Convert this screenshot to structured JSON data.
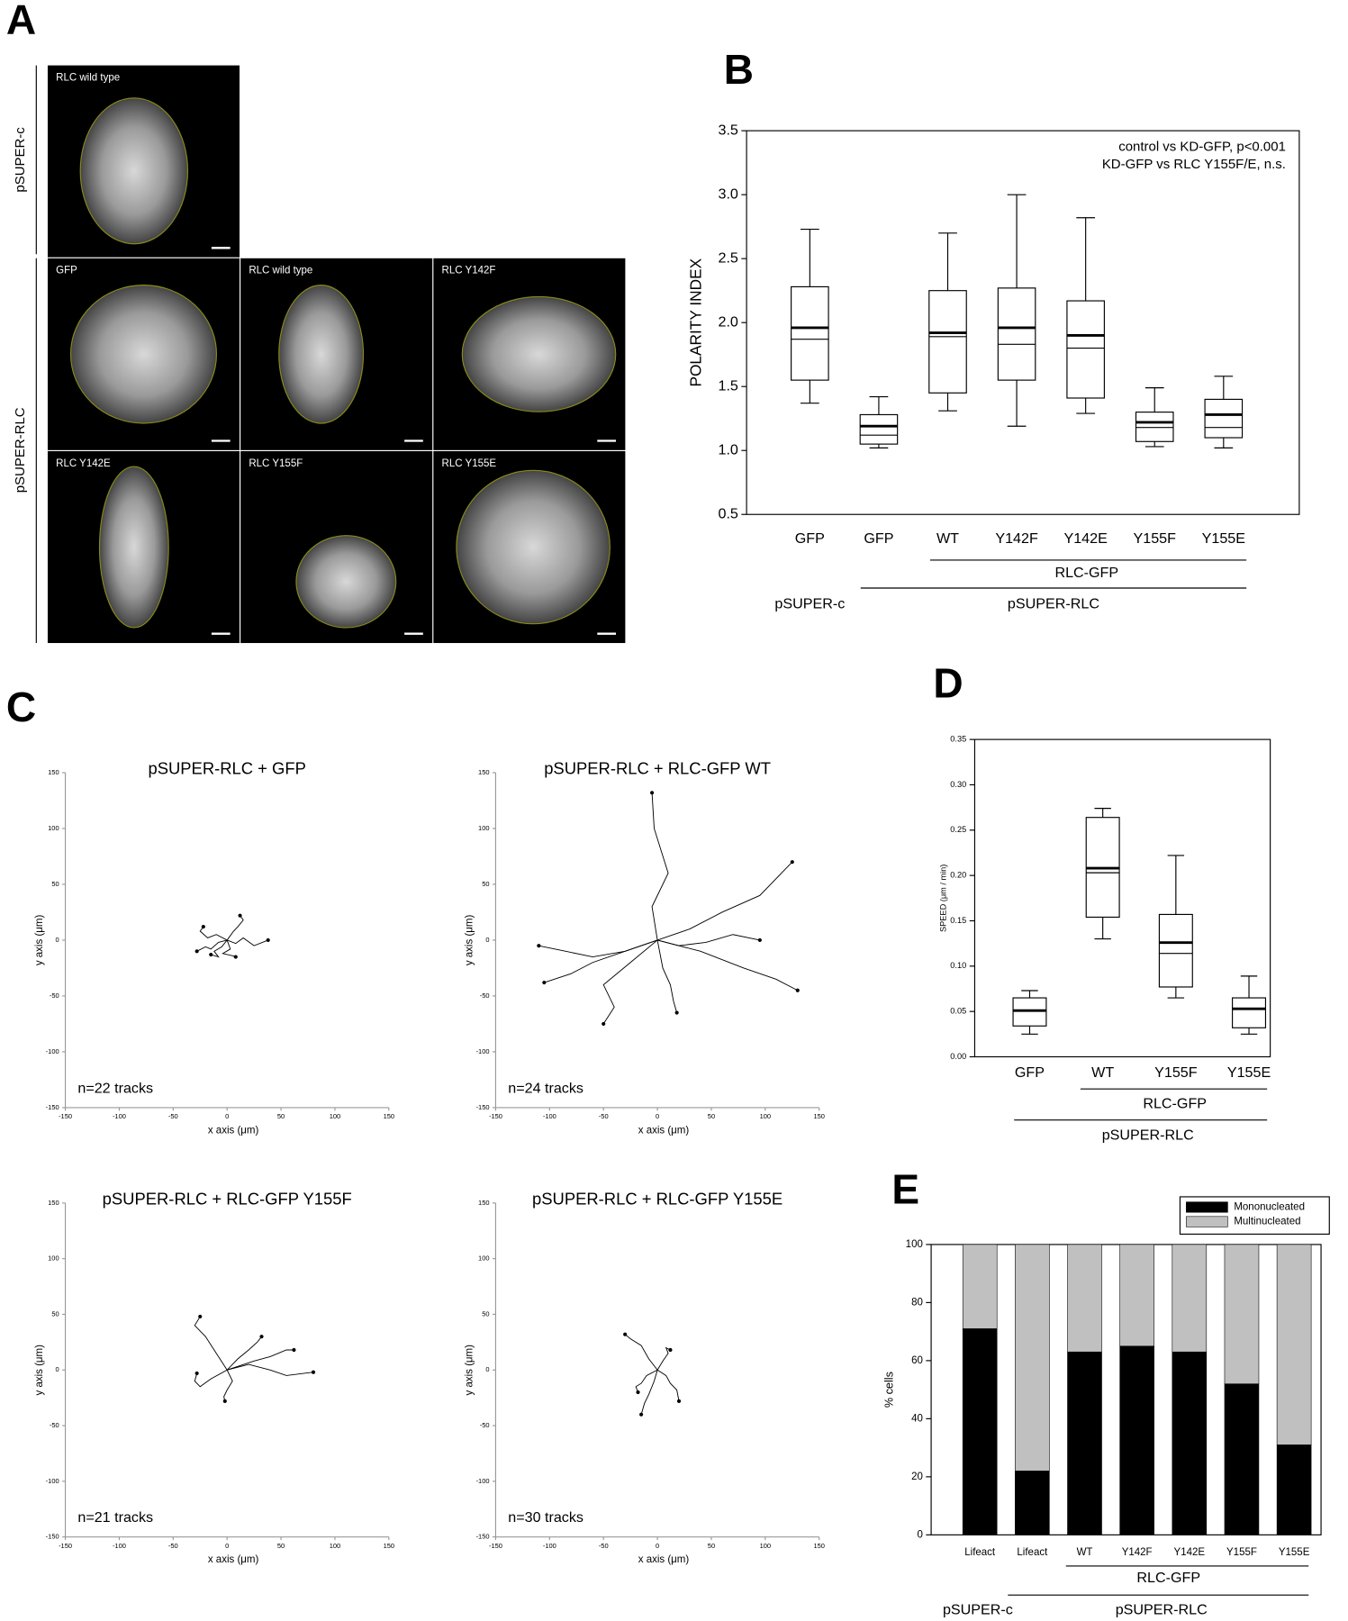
{
  "panel_labels": [
    "A",
    "B",
    "C",
    "D",
    "E"
  ],
  "figure_a": {
    "row_labels": [
      "pSUPER-c",
      "pSUPER-RLC"
    ],
    "image_labels": [
      "RLC wild type",
      "GFP",
      "RLC wild type",
      "RLC Y142F",
      "RLC Y142E",
      "RLC Y155F",
      "RLC Y155E"
    ]
  },
  "chart_data": [
    {
      "type": "box",
      "ylabel": "POLARITY INDEX",
      "annotations": [
        "control vs KD-GFP, p<0.001",
        "KD-GFP vs RLC Y155F/E, n.s."
      ],
      "categories": [
        "GFP",
        "GFP",
        "WT",
        "Y142F",
        "Y142E",
        "Y155F",
        "Y155E"
      ],
      "group_labels": [
        "RLC-GFP",
        "pSUPER-c",
        "pSUPER-RLC"
      ],
      "boxes": [
        {
          "whisker_low": 1.37,
          "q1": 1.55,
          "median": 1.96,
          "mean": 1.87,
          "q3": 2.28,
          "whisker_high": 2.73
        },
        {
          "whisker_low": 1.02,
          "q1": 1.05,
          "median": 1.19,
          "mean": 1.12,
          "q3": 1.28,
          "whisker_high": 1.42
        },
        {
          "whisker_low": 1.31,
          "q1": 1.45,
          "median": 1.92,
          "mean": 1.89,
          "q3": 2.25,
          "whisker_high": 2.7
        },
        {
          "whisker_low": 1.19,
          "q1": 1.55,
          "median": 1.96,
          "mean": 1.83,
          "q3": 2.27,
          "whisker_high": 3.0
        },
        {
          "whisker_low": 1.29,
          "q1": 1.41,
          "median": 1.9,
          "mean": 1.8,
          "q3": 2.17,
          "whisker_high": 2.82
        },
        {
          "whisker_low": 1.03,
          "q1": 1.07,
          "median": 1.22,
          "mean": 1.18,
          "q3": 1.3,
          "whisker_high": 1.49
        },
        {
          "whisker_low": 1.02,
          "q1": 1.1,
          "median": 1.28,
          "mean": 1.18,
          "q3": 1.4,
          "whisker_high": 1.58
        }
      ],
      "color": "#000000",
      "ylim": [
        0.5,
        3.5
      ],
      "yticks": [
        0.5,
        {
          "value": 1,
          "label": "1.0"
        },
        1.5,
        {
          "value": 2,
          "label": "2.0"
        },
        2.5,
        {
          "value": 3,
          "label": "3.0"
        },
        3.5
      ]
    },
    {
      "type": "line",
      "title": "pSUPER-RLC + GFP",
      "xlabel": "x axis (μm)",
      "ylabel": "y axis (μm)",
      "annotation": "n=22 tracks",
      "color": "#000000",
      "xlim": [
        -150,
        150
      ],
      "ylim": [
        -150,
        150
      ],
      "xticks": [
        -150,
        -100,
        -50,
        0,
        50,
        100,
        150
      ],
      "yticks": [
        -150,
        -100,
        -50,
        0,
        50,
        100,
        150
      ],
      "series": [
        {
          "x": [
            0,
            -10,
            -18,
            -25,
            -22
          ],
          "values": [
            0,
            5,
            2,
            8,
            12
          ]
        },
        {
          "x": [
            0,
            8,
            15,
            25,
            38
          ],
          "values": [
            0,
            -3,
            2,
            -5,
            0
          ]
        },
        {
          "x": [
            0,
            -5,
            -12,
            -8,
            -15
          ],
          "values": [
            0,
            -6,
            -10,
            -15,
            -13
          ]
        },
        {
          "x": [
            0,
            6,
            10,
            15,
            12
          ],
          "values": [
            0,
            8,
            12,
            18,
            22
          ]
        },
        {
          "x": [
            0,
            3,
            -4,
            5,
            8
          ],
          "values": [
            0,
            -8,
            -12,
            -14,
            -15
          ]
        },
        {
          "x": [
            0,
            -8,
            -15,
            -20,
            -28
          ],
          "values": [
            0,
            -2,
            -8,
            -6,
            -10
          ]
        }
      ]
    },
    {
      "type": "line",
      "title": "pSUPER-RLC + RLC-GFP WT",
      "xlabel": "x axis (μm)",
      "ylabel": "y axis (μm)",
      "annotation": "n=24 tracks",
      "color": "#000000",
      "xlim": [
        -150,
        150
      ],
      "ylim": [
        -150,
        150
      ],
      "xticks": [
        -150,
        -100,
        -50,
        0,
        50,
        100,
        150
      ],
      "yticks": [
        -150,
        -100,
        -50,
        0,
        50,
        100,
        150
      ],
      "series": [
        {
          "x": [
            0,
            -5,
            10,
            -3,
            -5
          ],
          "values": [
            0,
            30,
            60,
            100,
            132
          ]
        },
        {
          "x": [
            0,
            30,
            60,
            95,
            125
          ],
          "values": [
            0,
            10,
            25,
            40,
            70
          ]
        },
        {
          "x": [
            0,
            -30,
            -60,
            -85,
            -110
          ],
          "values": [
            0,
            -10,
            -15,
            -10,
            -5
          ]
        },
        {
          "x": [
            0,
            40,
            80,
            110,
            130
          ],
          "values": [
            0,
            -10,
            -25,
            -35,
            -45
          ]
        },
        {
          "x": [
            0,
            -25,
            -50,
            -40,
            -50
          ],
          "values": [
            0,
            -20,
            -40,
            -60,
            -75
          ]
        },
        {
          "x": [
            0,
            -30,
            -60,
            -80,
            -105
          ],
          "values": [
            0,
            -10,
            -20,
            -30,
            -38
          ]
        },
        {
          "x": [
            0,
            20,
            45,
            70,
            95
          ],
          "values": [
            0,
            -5,
            -2,
            5,
            0
          ]
        },
        {
          "x": [
            0,
            5,
            12,
            15,
            18
          ],
          "values": [
            0,
            -25,
            -40,
            -55,
            -65
          ]
        }
      ]
    },
    {
      "type": "line",
      "title": "pSUPER-RLC + RLC-GFP Y155F",
      "xlabel": "x axis (μm)",
      "ylabel": "y axis (μm)",
      "annotation": "n=21 tracks",
      "color": "#000000",
      "xlim": [
        -150,
        150
      ],
      "ylim": [
        -150,
        150
      ],
      "xticks": [
        -150,
        -100,
        -50,
        0,
        50,
        100,
        150
      ],
      "yticks": [
        -150,
        -100,
        -50,
        0,
        50,
        100,
        150
      ],
      "series": [
        {
          "x": [
            0,
            -10,
            -20,
            -30,
            -25
          ],
          "values": [
            0,
            15,
            30,
            40,
            48
          ]
        },
        {
          "x": [
            0,
            20,
            40,
            55,
            80
          ],
          "values": [
            0,
            5,
            0,
            -5,
            -2
          ]
        },
        {
          "x": [
            0,
            25,
            40,
            55,
            62
          ],
          "values": [
            0,
            8,
            12,
            18,
            18
          ]
        },
        {
          "x": [
            0,
            -15,
            -25,
            -30,
            -28
          ],
          "values": [
            0,
            -8,
            -15,
            -10,
            -3
          ]
        },
        {
          "x": [
            0,
            5,
            0,
            -3,
            -2
          ],
          "values": [
            0,
            -10,
            -18,
            -24,
            -28
          ]
        },
        {
          "x": [
            0,
            10,
            20,
            28,
            32
          ],
          "values": [
            0,
            10,
            18,
            25,
            30
          ]
        }
      ]
    },
    {
      "type": "line",
      "title": "pSUPER-RLC + RLC-GFP Y155E",
      "xlabel": "x axis (μm)",
      "ylabel": "y axis (μm)",
      "annotation": "n=30 tracks",
      "color": "#000000",
      "xlim": [
        -150,
        150
      ],
      "ylim": [
        -150,
        150
      ],
      "xticks": [
        -150,
        -100,
        -50,
        0,
        50,
        100,
        150
      ],
      "yticks": [
        -150,
        -100,
        -50,
        0,
        50,
        100,
        150
      ],
      "series": [
        {
          "x": [
            0,
            -8,
            -15,
            -25,
            -30
          ],
          "values": [
            0,
            10,
            22,
            28,
            32
          ]
        },
        {
          "x": [
            0,
            -3,
            -8,
            -12,
            -15
          ],
          "values": [
            0,
            -10,
            -22,
            -30,
            -40
          ]
        },
        {
          "x": [
            0,
            8,
            12,
            18,
            20
          ],
          "values": [
            0,
            -5,
            -12,
            -18,
            -28
          ]
        },
        {
          "x": [
            0,
            5,
            10,
            8,
            12
          ],
          "values": [
            0,
            8,
            15,
            20,
            18
          ]
        },
        {
          "x": [
            0,
            -10,
            -15,
            -20,
            -18
          ],
          "values": [
            0,
            -5,
            -12,
            -15,
            -20
          ]
        }
      ]
    },
    {
      "type": "box",
      "ylabel": "SPEED (μm / min)",
      "categories": [
        "GFP",
        "WT",
        "Y155F",
        "Y155E"
      ],
      "group_labels": [
        "RLC-GFP",
        "pSUPER-RLC"
      ],
      "boxes": [
        {
          "whisker_low": 0.025,
          "q1": 0.034,
          "median": 0.051,
          "mean": 0.051,
          "q3": 0.065,
          "whisker_high": 0.073
        },
        {
          "whisker_low": 0.13,
          "q1": 0.154,
          "median": 0.208,
          "mean": 0.203,
          "q3": 0.264,
          "whisker_high": 0.274
        },
        {
          "whisker_low": 0.065,
          "q1": 0.077,
          "median": 0.126,
          "mean": 0.114,
          "q3": 0.157,
          "whisker_high": 0.222
        },
        {
          "whisker_low": 0.025,
          "q1": 0.032,
          "median": 0.053,
          "mean": 0.053,
          "q3": 0.065,
          "whisker_high": 0.089
        }
      ],
      "color": "#000000",
      "ylim": [
        0,
        0.35
      ],
      "yticks": [
        {
          "value": 0,
          "label": "0.00"
        },
        {
          "value": 0.05,
          "label": "0.05"
        },
        {
          "value": 0.1,
          "label": "0.10"
        },
        {
          "value": 0.15,
          "label": "0.15"
        },
        {
          "value": 0.2,
          "label": "0.20"
        },
        {
          "value": 0.25,
          "label": "0.25"
        },
        {
          "value": 0.3,
          "label": "0.30"
        },
        {
          "value": 0.35,
          "label": "0.35"
        }
      ]
    },
    {
      "type": "bar",
      "stacked": true,
      "ylabel": "% cells",
      "categories": [
        "Lifeact",
        "Lifeact",
        "WT",
        "Y142F",
        "Y142E",
        "Y155F",
        "Y155E"
      ],
      "group_labels": [
        "RLC-GFP",
        "pSUPER-c",
        "pSUPER-RLC"
      ],
      "series": [
        {
          "name": "Mononucleated",
          "color": "#000000",
          "values": [
            71,
            22,
            63,
            65,
            63,
            52,
            31
          ]
        },
        {
          "name": "Multinucleated",
          "color": "#c0c0c0",
          "values": [
            29,
            78,
            37,
            35,
            37,
            48,
            69
          ]
        }
      ],
      "ylim": [
        0,
        100
      ],
      "yticks": [
        0,
        20,
        40,
        60,
        80,
        100
      ],
      "legend": "top-right"
    }
  ]
}
